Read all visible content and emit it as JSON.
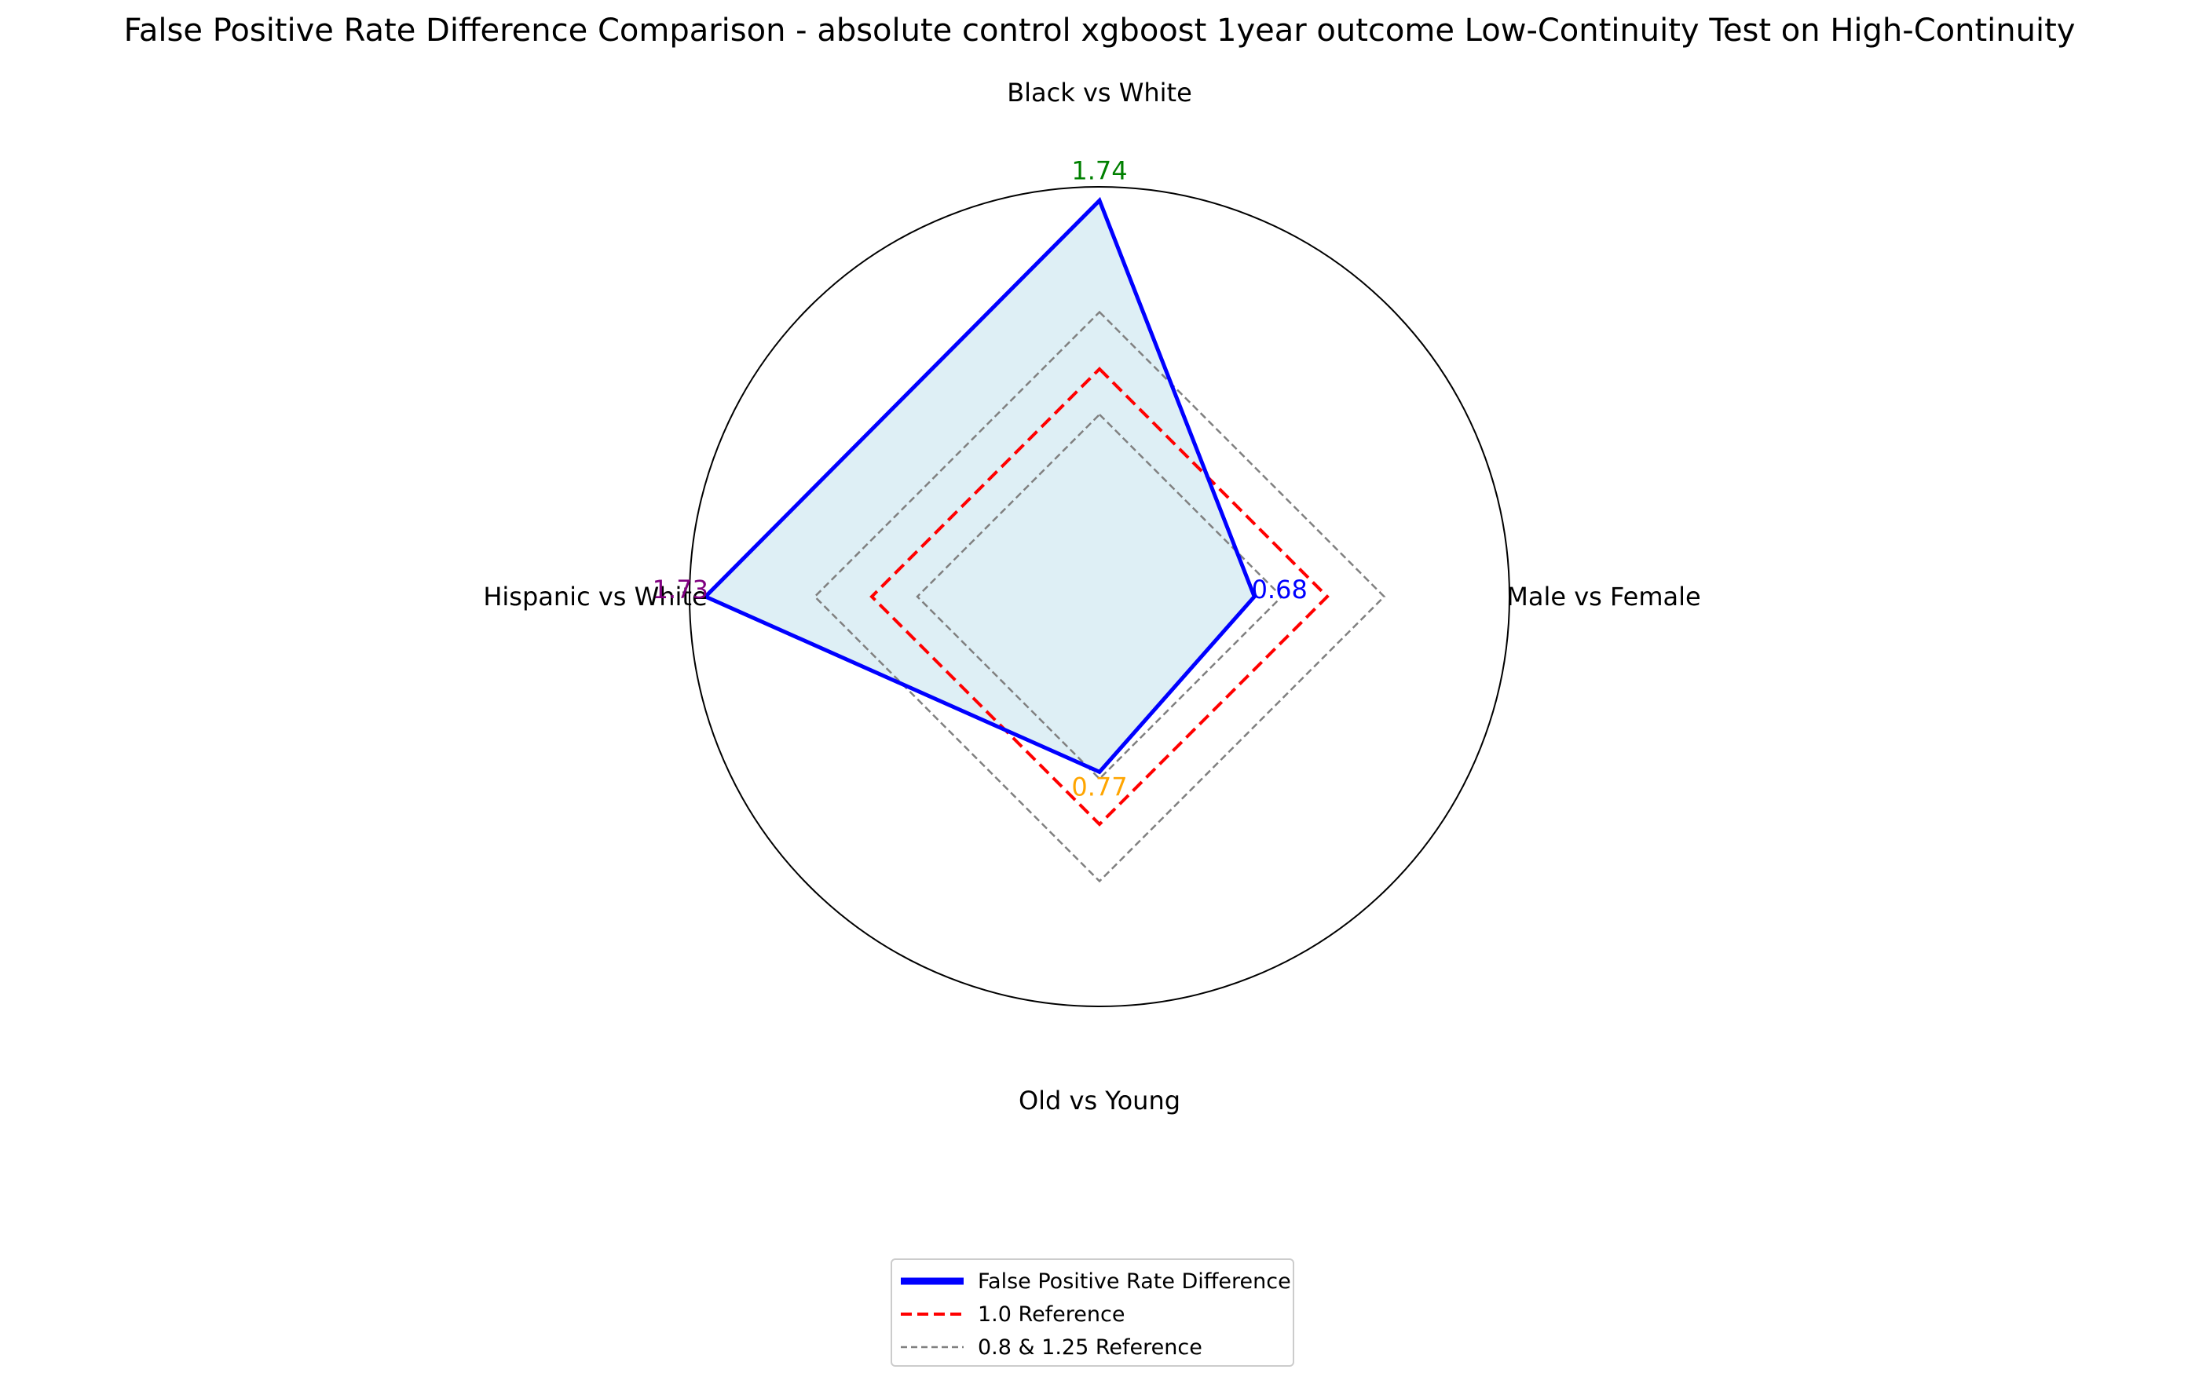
{
  "chart_data": {
    "type": "radar",
    "title": "False Positive Rate Difference Comparison - absolute control xgboost 1year outcome Low-Continuity Test on High-Continuity",
    "categories": [
      "Black vs White",
      "Male vs Female",
      "Old vs Young",
      "Hispanic vs White"
    ],
    "values": [
      1.74,
      0.68,
      0.77,
      1.73
    ],
    "value_label_colors": [
      "#008000",
      "#0000ff",
      "#ffa500",
      "#800080"
    ],
    "rmax": 1.8,
    "grid": false,
    "series": [
      {
        "name": "False Positive Rate Difference",
        "values": [
          1.74,
          0.68,
          0.77,
          1.73
        ],
        "color": "#0000ff",
        "fill": "#add8e6",
        "style": "solid"
      }
    ],
    "references": [
      {
        "name": "1.0 Reference",
        "value": 1.0,
        "color": "#ff0000",
        "style": "dashed"
      },
      {
        "name": "0.8 & 1.25 Reference",
        "values": [
          0.8,
          1.25
        ],
        "color": "#808080",
        "style": "dashed"
      }
    ],
    "legend_position": "bottom-center"
  }
}
